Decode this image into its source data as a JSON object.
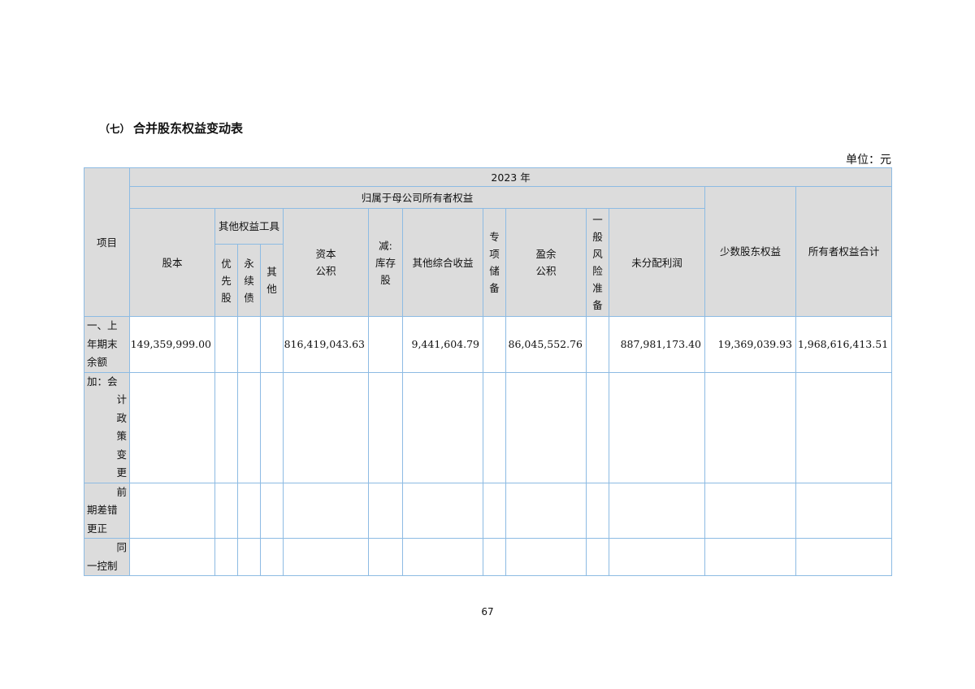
{
  "section": {
    "number": "（七）",
    "title": "合并股东权益变动表"
  },
  "unit": "单位：元",
  "header": {
    "year": "2023 年",
    "item": "项目",
    "parent_group": "归属于母公司所有者权益",
    "other_equity_group": "其他权益工具",
    "columns": {
      "share_capital": "股本",
      "preferred": [
        "优",
        "先",
        "股"
      ],
      "perpetual": [
        "永",
        "续",
        "债"
      ],
      "other": [
        "其",
        "他"
      ],
      "capital_reserve": [
        "资本",
        "公积"
      ],
      "treasury": [
        "减:",
        "库存",
        "股"
      ],
      "oci": "其他综合收益",
      "special_reserve": [
        "专",
        "项",
        "储",
        "备"
      ],
      "surplus_reserve": [
        "盈余",
        "公积"
      ],
      "general_risk": [
        "一",
        "般",
        "风",
        "险",
        "准",
        "备"
      ],
      "retained": "未分配利润",
      "minority": "少数股东权益",
      "total": "所有者权益合计"
    }
  },
  "rows": [
    {
      "label": [
        "一、上",
        "年期末",
        "余额"
      ],
      "values": [
        "149,359,999.00",
        "",
        "",
        "",
        "816,419,043.63",
        "",
        "9,441,604.79",
        "",
        "86,045,552.76",
        "",
        "887,981,173.40",
        "19,369,039.93",
        "1,968,616,413.51"
      ]
    },
    {
      "label": [
        "加：会",
        "计",
        "政",
        "策",
        "变",
        "更"
      ],
      "values": [
        "",
        "",
        "",
        "",
        "",
        "",
        "",
        "",
        "",
        "",
        "",
        "",
        ""
      ]
    },
    {
      "label": [
        "前",
        "期差错",
        "更正"
      ],
      "values": [
        "",
        "",
        "",
        "",
        "",
        "",
        "",
        "",
        "",
        "",
        "",
        "",
        ""
      ]
    },
    {
      "label": [
        "同",
        "一控制"
      ],
      "values": [
        "",
        "",
        "",
        "",
        "",
        "",
        "",
        "",
        "",
        "",
        "",
        "",
        ""
      ]
    }
  ],
  "page_number": "67",
  "colors": {
    "header_bg": "#dcdcdc",
    "border": "#8dbbe3"
  }
}
